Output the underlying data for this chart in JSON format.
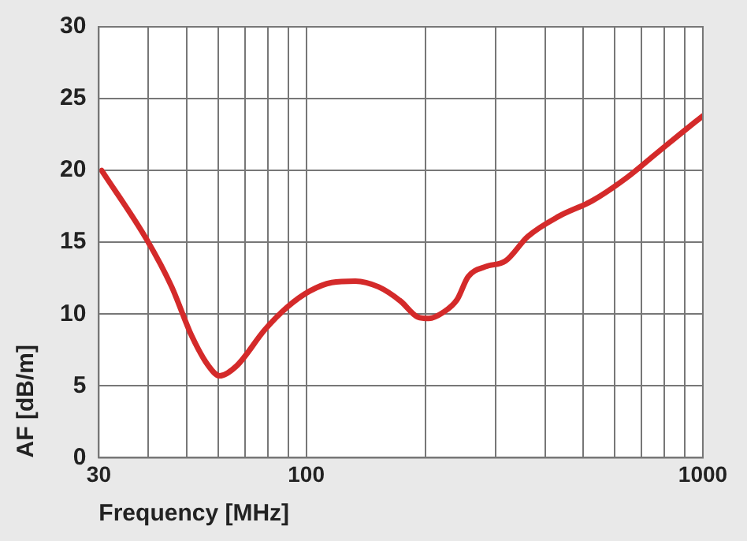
{
  "chart_data": {
    "type": "line",
    "xlabel": "Frequency [MHz]",
    "ylabel": "AF [dB/m]",
    "log": "x",
    "grid": true,
    "marker": "none",
    "line_style": "solid",
    "xlim": [
      30,
      1000
    ],
    "ylim": [
      0,
      30
    ],
    "xticks": [
      30,
      {
        "value": 40,
        "label": null
      },
      {
        "value": 50,
        "label": null
      },
      {
        "value": 60,
        "label": null
      },
      {
        "value": 70,
        "label": null
      },
      {
        "value": 80,
        "label": null
      },
      {
        "value": 90,
        "label": null
      },
      100,
      {
        "value": 200,
        "label": null
      },
      {
        "value": 300,
        "label": null
      },
      {
        "value": 400,
        "label": null
      },
      {
        "value": 500,
        "label": null
      },
      {
        "value": 600,
        "label": null
      },
      {
        "value": 700,
        "label": null
      },
      {
        "value": 800,
        "label": null
      },
      {
        "value": 900,
        "label": null
      },
      1000
    ],
    "yticks": [
      0,
      5,
      10,
      15,
      20,
      25,
      30
    ],
    "x": [
      30.5,
      39.6,
      45.8,
      51.4,
      56.7,
      60.5,
      66.8,
      78.6,
      89.7,
      102,
      116,
      133,
      152,
      173,
      191,
      204,
      221,
      240,
      256,
      283,
      318,
      362,
      433,
      527,
      643,
      757,
      864,
      1000
    ],
    "series": [
      {
        "color": "#d42a2a",
        "values": [
          20.0,
          15.2,
          11.9,
          8.5,
          6.4,
          5.7,
          6.4,
          8.9,
          10.5,
          11.6,
          12.2,
          12.3,
          11.9,
          10.9,
          9.8,
          9.7,
          10.1,
          11.0,
          12.6,
          13.3,
          13.7,
          15.4,
          16.8,
          17.9,
          19.5,
          21.1,
          22.4,
          23.8
        ]
      }
    ]
  }
}
